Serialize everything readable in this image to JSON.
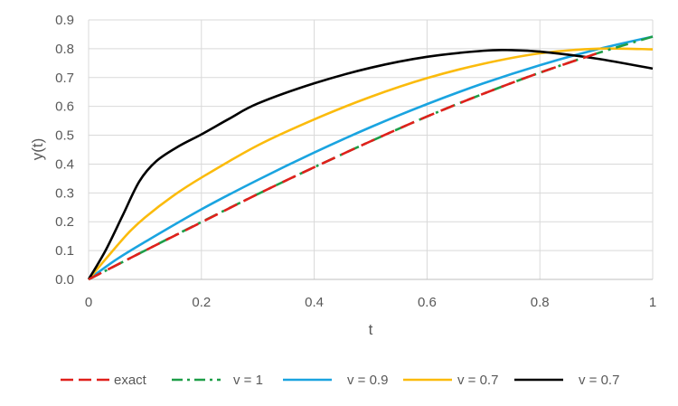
{
  "chart_data": {
    "type": "line",
    "title": "",
    "xlabel": "t",
    "ylabel": "y(t)",
    "xlim": [
      0,
      1
    ],
    "ylim": [
      0,
      0.9
    ],
    "x_ticks": [
      "0",
      "0.2",
      "0.4",
      "0.6",
      "0.8",
      "1"
    ],
    "y_ticks": [
      "0.0",
      "0.1",
      "0.2",
      "0.3",
      "0.4",
      "0.5",
      "0.6",
      "0.7",
      "0.8",
      "0.9"
    ],
    "grid": true,
    "legend_position": "bottom",
    "series": [
      {
        "name": "exact",
        "color": "#e0201b",
        "dash": "long-dash",
        "points": [
          [
            0,
            0
          ],
          [
            0.1,
            0.1
          ],
          [
            0.2,
            0.198
          ],
          [
            0.3,
            0.296
          ],
          [
            0.4,
            0.389
          ],
          [
            0.5,
            0.479
          ],
          [
            0.6,
            0.565
          ],
          [
            0.7,
            0.644
          ],
          [
            0.8,
            0.717
          ],
          [
            0.9,
            0.783
          ]
        ]
      },
      {
        "name": "v = 1",
        "color": "#1e9e48",
        "dash": "dash-dot",
        "points": [
          [
            0,
            0
          ],
          [
            0.1,
            0.1
          ],
          [
            0.2,
            0.199
          ],
          [
            0.3,
            0.296
          ],
          [
            0.4,
            0.389
          ],
          [
            0.5,
            0.479
          ],
          [
            0.6,
            0.565
          ],
          [
            0.7,
            0.644
          ],
          [
            0.8,
            0.717
          ],
          [
            0.9,
            0.783
          ],
          [
            1,
            0.842
          ]
        ]
      },
      {
        "name": "v = 0.9",
        "color": "#1aa4e0",
        "dash": "solid",
        "points": [
          [
            0,
            0
          ],
          [
            0.05,
            0.07
          ],
          [
            0.1,
            0.13
          ],
          [
            0.2,
            0.243
          ],
          [
            0.3,
            0.345
          ],
          [
            0.4,
            0.44
          ],
          [
            0.5,
            0.528
          ],
          [
            0.6,
            0.608
          ],
          [
            0.7,
            0.68
          ],
          [
            0.8,
            0.743
          ],
          [
            0.9,
            0.797
          ],
          [
            1,
            0.842
          ]
        ]
      },
      {
        "name": "v = 0.7",
        "color": "#fbbb0c",
        "dash": "solid",
        "points": [
          [
            0,
            0
          ],
          [
            0.03,
            0.07
          ],
          [
            0.07,
            0.16
          ],
          [
            0.1,
            0.215
          ],
          [
            0.15,
            0.29
          ],
          [
            0.2,
            0.353
          ],
          [
            0.3,
            0.465
          ],
          [
            0.4,
            0.555
          ],
          [
            0.5,
            0.633
          ],
          [
            0.6,
            0.698
          ],
          [
            0.7,
            0.748
          ],
          [
            0.8,
            0.784
          ],
          [
            0.9,
            0.8
          ],
          [
            1,
            0.798
          ]
        ]
      },
      {
        "name": "v = 0.7",
        "color": "#000000",
        "dash": "solid",
        "points": [
          [
            0,
            0
          ],
          [
            0.03,
            0.1
          ],
          [
            0.06,
            0.22
          ],
          [
            0.09,
            0.34
          ],
          [
            0.12,
            0.41
          ],
          [
            0.16,
            0.462
          ],
          [
            0.2,
            0.503
          ],
          [
            0.25,
            0.558
          ],
          [
            0.3,
            0.61
          ],
          [
            0.4,
            0.68
          ],
          [
            0.5,
            0.734
          ],
          [
            0.6,
            0.772
          ],
          [
            0.7,
            0.793
          ],
          [
            0.75,
            0.795
          ],
          [
            0.8,
            0.79
          ],
          [
            0.9,
            0.766
          ],
          [
            1,
            0.731
          ]
        ]
      }
    ]
  }
}
